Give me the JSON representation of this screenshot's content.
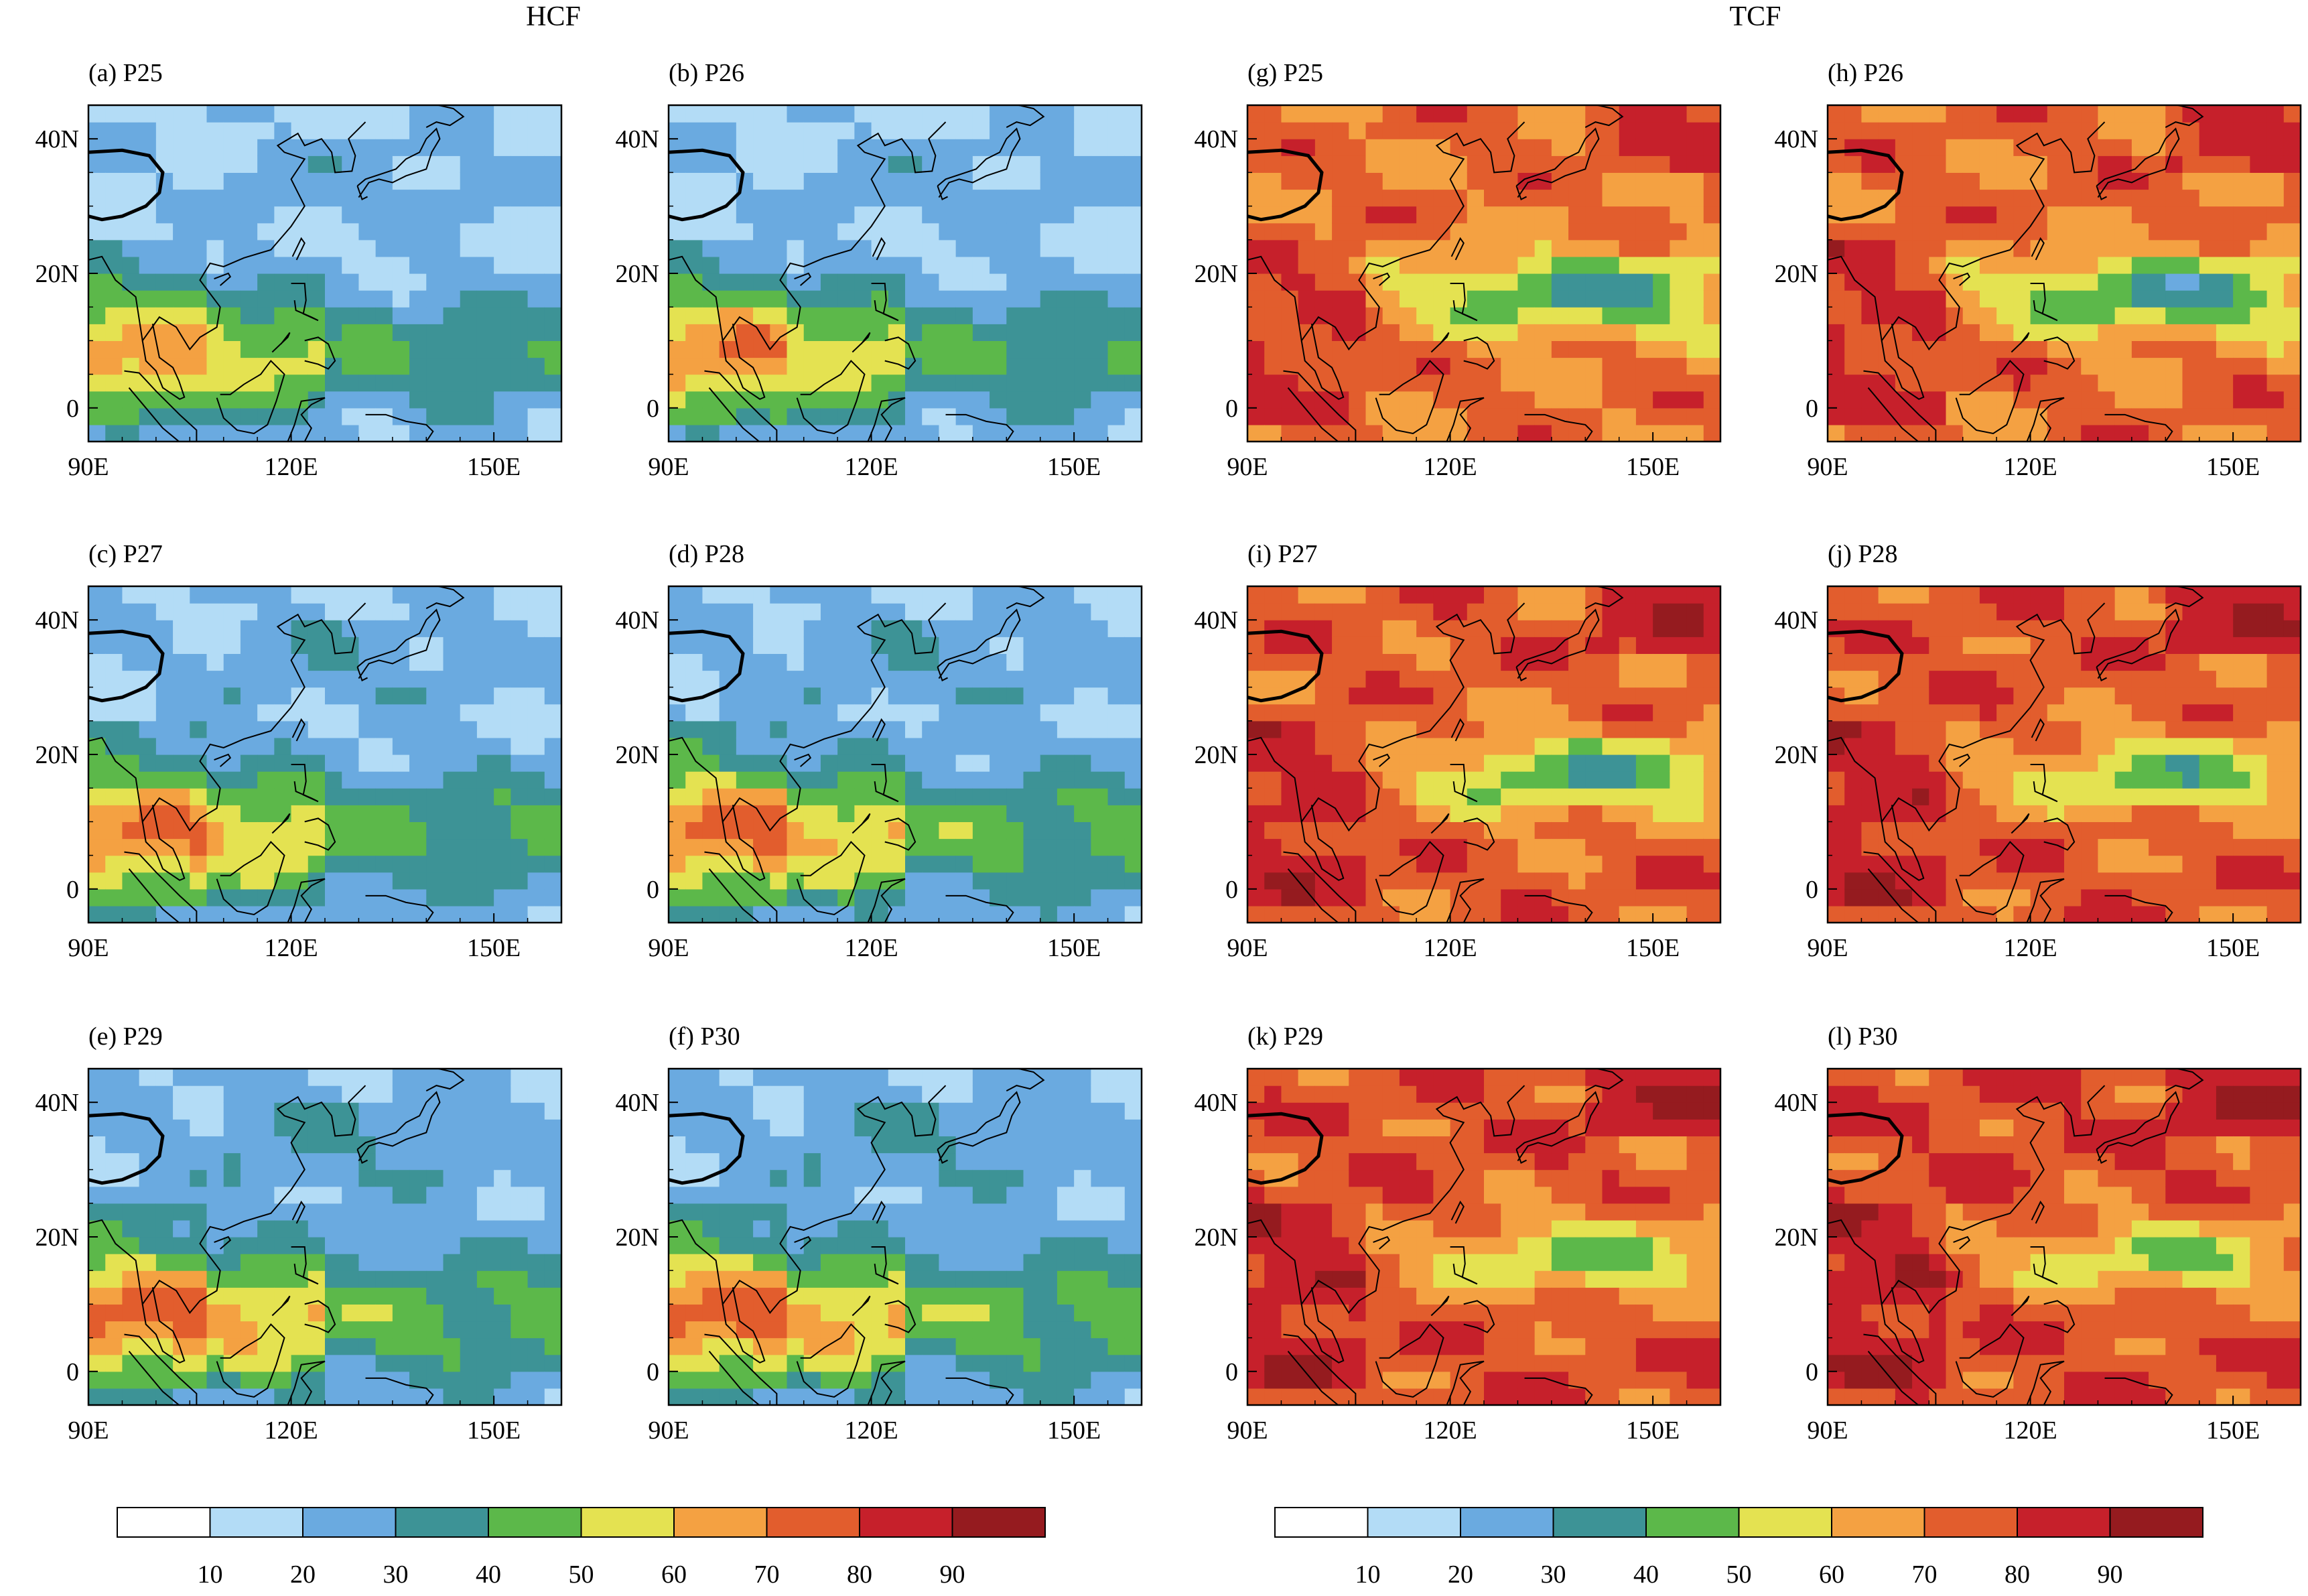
{
  "groups": [
    {
      "label": "HCF",
      "palette": "hcf"
    },
    {
      "label": "TCF",
      "palette": "tcf"
    }
  ],
  "panels": [
    {
      "label": "(a) P25",
      "group": "HCF",
      "base": 18,
      "sea": 25,
      "trop": 55
    },
    {
      "label": "(b) P26",
      "group": "HCF",
      "base": 18,
      "sea": 28,
      "trop": 58
    },
    {
      "label": "(c) P27",
      "group": "HCF",
      "base": 20,
      "sea": 26,
      "trop": 60
    },
    {
      "label": "(d) P28",
      "group": "HCF",
      "base": 21,
      "sea": 30,
      "trop": 62
    },
    {
      "label": "(e) P29",
      "group": "HCF",
      "base": 22,
      "sea": 28,
      "trop": 63
    },
    {
      "label": "(f) P30",
      "group": "HCF",
      "base": 22,
      "sea": 31,
      "trop": 64
    },
    {
      "label": "(g) P25",
      "group": "TCF",
      "base": 72,
      "sea": 38,
      "trop": 80
    },
    {
      "label": "(h) P26",
      "group": "TCF",
      "base": 73,
      "sea": 36,
      "trop": 82
    },
    {
      "label": "(i) P27",
      "group": "TCF",
      "base": 75,
      "sea": 40,
      "trop": 83
    },
    {
      "label": "(j) P28",
      "group": "TCF",
      "base": 76,
      "sea": 45,
      "trop": 84
    },
    {
      "label": "(k) P29",
      "group": "TCF",
      "base": 77,
      "sea": 48,
      "trop": 85
    },
    {
      "label": "(l) P30",
      "group": "TCF",
      "base": 78,
      "sea": 50,
      "trop": 86
    }
  ],
  "axes": {
    "x_ticks": [
      "90E",
      "120E",
      "150E"
    ],
    "y_ticks": [
      "40N",
      "20N",
      "0"
    ]
  },
  "colorbar": {
    "labels": [
      "10",
      "20",
      "30",
      "40",
      "50",
      "60",
      "70",
      "80",
      "90"
    ],
    "colors": [
      "#ffffff",
      "#b3dcf6",
      "#6aaae0",
      "#3d9396",
      "#5cb84a",
      "#e4e251",
      "#f4a142",
      "#e25d2d",
      "#c6202b",
      "#951b1f"
    ]
  }
}
